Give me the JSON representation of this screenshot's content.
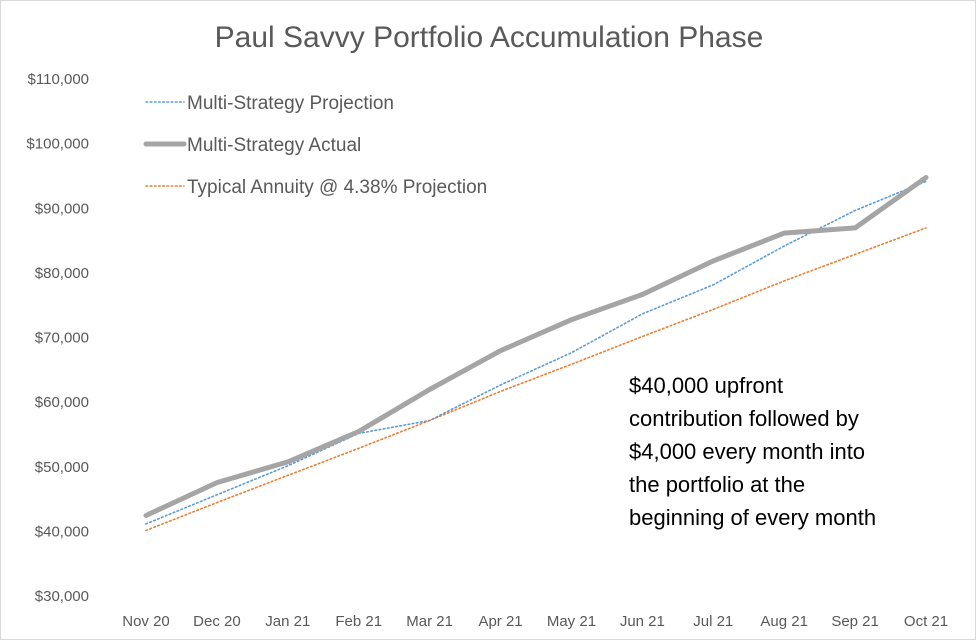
{
  "chart_data": {
    "type": "line",
    "title": "Paul Savvy Portfolio Accumulation Phase",
    "xlabel": "",
    "ylabel": "",
    "categories": [
      "Nov 20",
      "Dec 20",
      "Jan 21",
      "Feb 21",
      "Mar 21",
      "Apr 21",
      "May 21",
      "Jun 21",
      "Jul 21",
      "Aug 21",
      "Sep 21",
      "Oct 21"
    ],
    "ylim": [
      30000,
      110000
    ],
    "yticks": [
      30000,
      40000,
      50000,
      60000,
      70000,
      80000,
      90000,
      100000,
      110000
    ],
    "ytick_labels": [
      "$30,000",
      "$40,000",
      "$50,000",
      "$60,000",
      "$70,000",
      "$80,000",
      "$90,000",
      "$100,000",
      "$110,000"
    ],
    "grid": false,
    "legend_position": "top-left",
    "series": [
      {
        "name": "Multi-Strategy Projection",
        "style": "dotted",
        "color": "#5b9bd5",
        "values": [
          41000,
          45500,
          50000,
          55000,
          57000,
          62500,
          67500,
          73500,
          78000,
          84000,
          89500,
          94000
        ]
      },
      {
        "name": "Multi-Strategy Actual",
        "style": "solid",
        "color": "#a5a5a5",
        "values": [
          42300,
          47400,
          50600,
          55300,
          61800,
          67800,
          72600,
          76500,
          81700,
          86000,
          86800,
          94600
        ]
      },
      {
        "name": "Typical Annuity @ 4.38% Projection",
        "style": "dotted",
        "color": "#ed7d31",
        "values": [
          40000,
          44300,
          48500,
          52700,
          57000,
          61500,
          65700,
          70000,
          74200,
          78600,
          82700,
          86800
        ]
      }
    ],
    "annotation": [
      "$40,000 upfront",
      "contribution followed by",
      "$4,000 every month into",
      "the portfolio at the",
      "beginning of every month"
    ]
  }
}
